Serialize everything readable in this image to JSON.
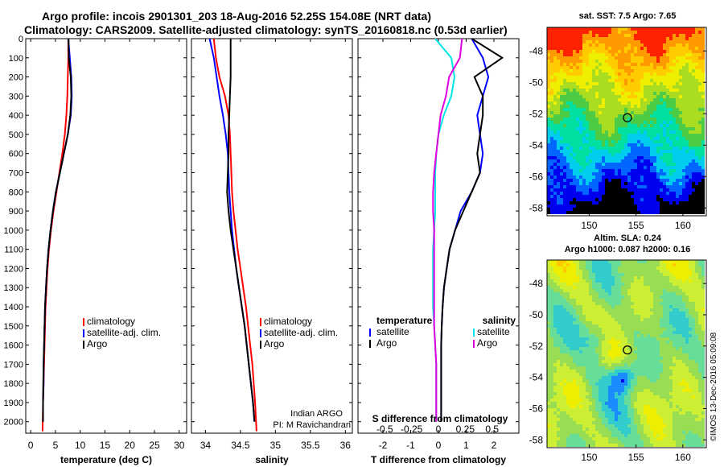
{
  "header": {
    "title_line1": "Argo profile: incois 2901301_203 18-Aug-2016 52.25S 154.08E (NRT data)",
    "title_line2": "Climatology: CARS2009. Satellite-adjusted climatology: synTS_20160818.nc (0.53d earlier)"
  },
  "maps": {
    "sst_title": "sat. SST: 7.5 Argo: 7.65",
    "sla_title_line1": "Altim. SLA: 0.24",
    "sla_title_line2": "Argo h1000: 0.087 h2000: 0.16",
    "lon_ticks": [
      "150",
      "155",
      "160"
    ],
    "lat_ticks": [
      "-48",
      "-50",
      "-52",
      "-54",
      "-56",
      "-58"
    ],
    "lon_range": [
      145.5,
      162.5
    ],
    "lat_range": [
      -58.5,
      -46.5
    ],
    "float_position": {
      "lon": 154.08,
      "lat": -52.25
    },
    "credit": "©IMOS 13-Dec-2016 05:09:08"
  },
  "colors": {
    "climatology": "#ff0000",
    "satellite": "#0000ff",
    "argo": "#000000",
    "sat_salinity": "#00e5e5",
    "argo_salinity": "#e000e0"
  },
  "chart_data": [
    {
      "type": "line",
      "xlabel": "temperature (deg C)",
      "ylabel": "",
      "xlim": [
        -1,
        31.5
      ],
      "ylim": [
        2060,
        0
      ],
      "x_ticks": [
        "0",
        "5",
        "10",
        "15",
        "20",
        "25",
        "30"
      ],
      "y_ticks": [
        "0",
        "100",
        "200",
        "300",
        "400",
        "500",
        "600",
        "700",
        "800",
        "900",
        "1000",
        "1100",
        "1200",
        "1300",
        "1400",
        "1500",
        "1600",
        "1700",
        "1800",
        "1900",
        "2000"
      ],
      "legend": [
        "climatology",
        "satellite-adj. clim.",
        "Argo"
      ],
      "series": [
        {
          "name": "climatology",
          "x": [
            7.6,
            7.6,
            7.5,
            7.4,
            7.2,
            6.9,
            6.4,
            5.8,
            5.2,
            4.6,
            4.1,
            3.7,
            3.4,
            3.2,
            3.0,
            2.9,
            2.8,
            2.7,
            2.6,
            2.5,
            2.4
          ],
          "y": [
            0,
            100,
            200,
            300,
            400,
            500,
            600,
            700,
            800,
            900,
            1000,
            1100,
            1200,
            1300,
            1400,
            1500,
            1600,
            1700,
            1800,
            1900,
            2050
          ]
        },
        {
          "name": "satellite-adj. clim.",
          "x": [
            7.6,
            7.9,
            8.2,
            8.3,
            8.1,
            7.5,
            6.7,
            5.9,
            5.1,
            4.5,
            4.0,
            3.6,
            3.3,
            3.1,
            2.9,
            2.8,
            2.7,
            2.6,
            2.6,
            2.5,
            2.5
          ],
          "y": [
            0,
            100,
            200,
            300,
            400,
            500,
            600,
            700,
            800,
            900,
            1000,
            1100,
            1200,
            1300,
            1400,
            1500,
            1600,
            1700,
            1800,
            1900,
            2000
          ]
        },
        {
          "name": "Argo",
          "x": [
            7.65,
            7.7,
            8.1,
            8.2,
            8.0,
            7.5,
            6.7,
            5.9,
            5.1,
            4.5,
            4.0,
            3.6,
            3.3,
            3.1,
            2.9,
            2.8,
            2.7,
            2.6,
            2.55,
            2.5,
            2.5
          ],
          "y": [
            0,
            100,
            200,
            300,
            400,
            500,
            600,
            700,
            800,
            900,
            1000,
            1100,
            1200,
            1300,
            1400,
            1500,
            1600,
            1700,
            1800,
            1900,
            2000
          ]
        }
      ]
    },
    {
      "type": "line",
      "xlabel": "salinity",
      "ylabel": "",
      "xlim": [
        33.8,
        36.1
      ],
      "ylim": [
        2060,
        0
      ],
      "x_ticks": [
        "34",
        "34.5",
        "35",
        "35.5",
        "36"
      ],
      "legend": [
        "climatology",
        "satellite-adj. clim.",
        "Argo"
      ],
      "annotation_line1": "Indian ARGO",
      "annotation_line2": "PI: M Ravichandran",
      "series": [
        {
          "name": "climatology",
          "x": [
            34.12,
            34.15,
            34.2,
            34.28,
            34.33,
            34.35,
            34.36,
            34.37,
            34.38,
            34.4,
            34.43,
            34.46,
            34.5,
            34.54,
            34.58,
            34.61,
            34.64,
            34.67,
            34.69,
            34.71,
            34.73
          ],
          "y": [
            0,
            100,
            200,
            300,
            400,
            500,
            600,
            700,
            800,
            900,
            1000,
            1100,
            1200,
            1300,
            1400,
            1500,
            1600,
            1700,
            1800,
            1900,
            2050
          ]
        },
        {
          "name": "satellite-adj. clim.",
          "x": [
            34.06,
            34.12,
            34.16,
            34.2,
            34.25,
            34.29,
            34.32,
            34.33,
            34.34,
            34.36,
            34.38,
            34.41,
            34.44,
            34.48,
            34.52,
            34.56,
            34.59,
            34.62,
            34.65,
            34.68,
            34.7
          ],
          "y": [
            0,
            100,
            200,
            300,
            400,
            500,
            600,
            700,
            800,
            900,
            1000,
            1100,
            1200,
            1300,
            1400,
            1500,
            1600,
            1700,
            1800,
            1900,
            2000
          ]
        },
        {
          "name": "Argo",
          "x": [
            34.36,
            34.36,
            34.36,
            34.35,
            34.34,
            34.33,
            34.33,
            34.32,
            34.31,
            34.33,
            34.36,
            34.4,
            34.44,
            34.48,
            34.52,
            34.56,
            34.59,
            34.62,
            34.65,
            34.68,
            34.7
          ],
          "y": [
            0,
            100,
            200,
            300,
            400,
            500,
            600,
            700,
            800,
            900,
            1000,
            1100,
            1200,
            1300,
            1400,
            1500,
            1600,
            1700,
            1800,
            1900,
            2000
          ]
        }
      ]
    },
    {
      "type": "line",
      "xlabel": "T difference from climatology",
      "ylabel": "",
      "xlim": [
        -2.9,
        2.9
      ],
      "ylim": [
        2060,
        0
      ],
      "x_ticks": [
        "-2",
        "-1",
        "0",
        "1",
        "2"
      ],
      "s_axis_label": "S difference from climatology",
      "s_ticks": [
        "-0.5",
        "-0.25",
        "0",
        "0.25",
        "0.5"
      ],
      "s_range": [
        -0.75,
        0.75
      ],
      "legend_left_header": "temperature",
      "legend_right_header": "salinity",
      "legend_left": [
        "satellite",
        "Argo"
      ],
      "legend_right": [
        "satellite",
        "Argo"
      ],
      "series": [
        {
          "name": "satellite",
          "axis": "temperature",
          "x": [
            1.2,
            1.6,
            1.8,
            1.6,
            1.4,
            1.5,
            1.6,
            1.5,
            1.2,
            0.8,
            0.6,
            0.4,
            0.3,
            0.2,
            0.15,
            0.12,
            0.1,
            0.1,
            0.1,
            0.1,
            0.1
          ],
          "y": [
            0,
            100,
            200,
            300,
            400,
            500,
            600,
            700,
            800,
            900,
            1000,
            1100,
            1200,
            1300,
            1400,
            1500,
            1600,
            1700,
            1800,
            1900,
            2000
          ]
        },
        {
          "name": "Argo",
          "axis": "temperature",
          "x": [
            1.2,
            2.3,
            1.3,
            1.6,
            1.6,
            1.5,
            1.4,
            1.5,
            1.2,
            0.9,
            0.6,
            0.4,
            0.3,
            0.2,
            0.15,
            0.12,
            0.1,
            0.1,
            0.1,
            0.1,
            0.1
          ],
          "y": [
            0,
            100,
            200,
            300,
            400,
            500,
            600,
            700,
            800,
            900,
            1000,
            1100,
            1200,
            1300,
            1400,
            1500,
            1600,
            1700,
            1800,
            1900,
            2000
          ]
        },
        {
          "name": "satellite",
          "axis": "salinity",
          "x": [
            -0.03,
            0.12,
            0.15,
            0.12,
            0.05,
            0.0,
            -0.02,
            -0.03,
            -0.03,
            -0.03,
            -0.04,
            -0.05,
            -0.05,
            -0.05,
            -0.05,
            -0.04,
            -0.03,
            -0.02,
            -0.02,
            -0.02,
            -0.02
          ],
          "y": [
            0,
            100,
            200,
            300,
            400,
            500,
            600,
            700,
            800,
            900,
            1000,
            1100,
            1200,
            1300,
            1400,
            1500,
            1600,
            1700,
            1800,
            1900,
            2000
          ]
        },
        {
          "name": "Argo",
          "axis": "salinity",
          "x": [
            0.22,
            0.2,
            0.1,
            0.07,
            0.02,
            0.0,
            -0.02,
            -0.04,
            -0.05,
            -0.05,
            -0.04,
            -0.04,
            -0.04,
            -0.04,
            -0.04,
            -0.04,
            -0.03,
            -0.02,
            -0.02,
            -0.02,
            -0.02
          ],
          "y": [
            0,
            100,
            200,
            300,
            400,
            500,
            600,
            700,
            800,
            900,
            1000,
            1100,
            1200,
            1300,
            1400,
            1500,
            1600,
            1700,
            1800,
            1900,
            2000
          ]
        }
      ]
    }
  ]
}
